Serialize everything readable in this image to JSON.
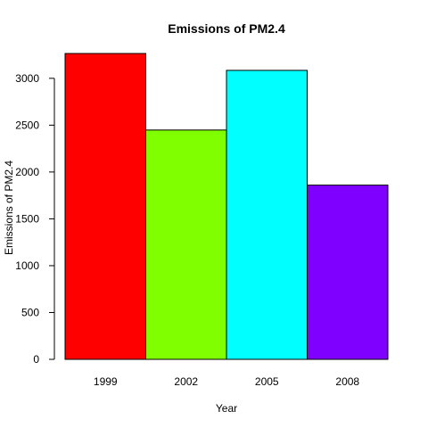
{
  "chart_data": {
    "type": "bar",
    "title": "Emissions of PM2.4",
    "xlabel": "Year",
    "ylabel": "Emissions of PM2.4",
    "categories": [
      "1999",
      "2002",
      "2005",
      "2008"
    ],
    "values": [
      3265,
      2448,
      3085,
      1860
    ],
    "colors": [
      "#ff0000",
      "#80ff00",
      "#00ffff",
      "#8000ff"
    ],
    "ylim": [
      0,
      3265
    ],
    "yticks": [
      0,
      500,
      1000,
      1500,
      2000,
      2500,
      3000
    ],
    "grid": false,
    "legend": "none"
  }
}
